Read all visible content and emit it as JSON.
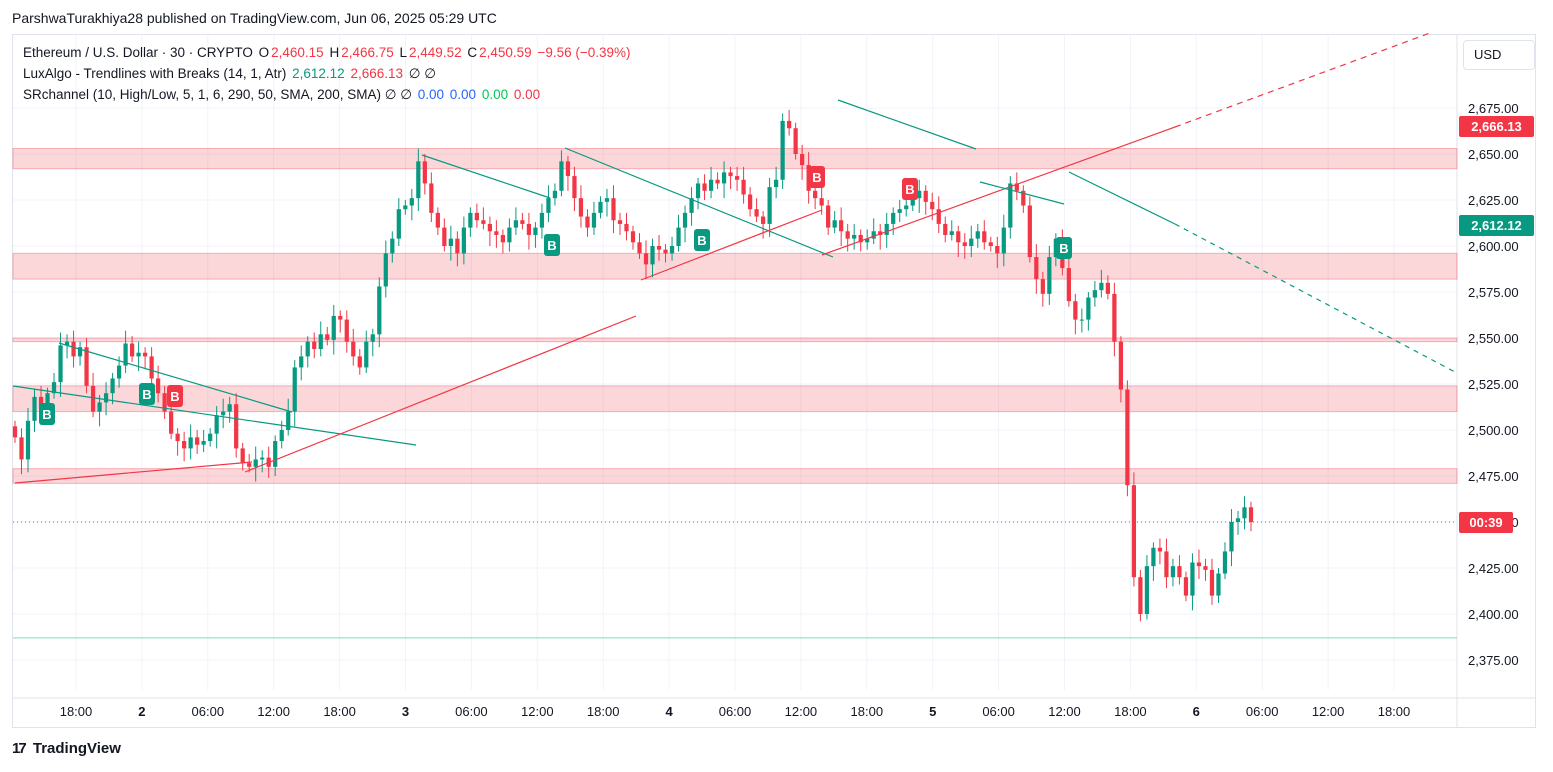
{
  "header": {
    "text": "ParshwaTurakhiya28 published on TradingView.com, Jun 06, 2025 05:29 UTC"
  },
  "legend": {
    "line1": {
      "symbol": "Ethereum / U.S. Dollar · 30 · CRYPTO",
      "o_label": "O",
      "o_val": "2,460.15",
      "h_label": "H",
      "h_val": "2,466.75",
      "l_label": "L",
      "l_val": "2,449.52",
      "c_label": "C",
      "c_val": "2,450.59",
      "change": "−9.56 (−0.39%)"
    },
    "line2": {
      "name": "LuxAlgo - Trendlines with Breaks (14, 1, Atr)",
      "v1": "2,612.12",
      "v2": "2,666.13",
      "v3": "∅ ∅"
    },
    "line3": {
      "name": "SRchannel (10, High/Low, 5, 1, 6, 290, 50, SMA, 200, SMA) ∅ ∅",
      "v1": "0.00",
      "v2": "0.00",
      "v3": "0.00",
      "v4": "0.00"
    }
  },
  "currency": "USD",
  "badges": {
    "resistance": "2,666.13",
    "support": "2,612.12",
    "countdown": "00:39"
  },
  "footer": {
    "brand": "TradingView",
    "logo": "17"
  },
  "colors": {
    "up": "#089981",
    "down": "#f23645",
    "zone": "#f23645",
    "trend_red": "#f23645",
    "trend_teal": "#089981"
  },
  "chart_data": {
    "type": "candlestick",
    "title": "Ethereum / U.S. Dollar · 30 · CRYPTO",
    "ylim": [
      2355,
      2698
    ],
    "y_ticks": [
      "2,675.00",
      "2,650.00",
      "2,625.00",
      "2,600.00",
      "2,575.00",
      "2,550.00",
      "2,525.00",
      "2,500.00",
      "2,475.00",
      "2,450.00",
      "2,425.00",
      "2,400.00",
      "2,375.00"
    ],
    "x_ticks": [
      "18:00",
      "2",
      "06:00",
      "12:00",
      "18:00",
      "3",
      "06:00",
      "12:00",
      "18:00",
      "4",
      "06:00",
      "12:00",
      "18:00",
      "5",
      "06:00",
      "12:00",
      "18:00",
      "6",
      "06:00",
      "12:00",
      "18:00"
    ],
    "bold_x_ticks": [
      "2",
      "3",
      "4",
      "5",
      "6"
    ],
    "candle_closes": [
      2496,
      2484,
      2505,
      2518,
      2512,
      2520,
      2526,
      2546,
      2548,
      2540,
      2545,
      2524,
      2510,
      2515,
      2520,
      2528,
      2535,
      2547,
      2540,
      2542,
      2540,
      2528,
      2520,
      2510,
      2498,
      2494,
      2490,
      2496,
      2492,
      2494,
      2498,
      2508,
      2510,
      2514,
      2490,
      2482,
      2480,
      2484,
      2485,
      2480,
      2494,
      2500,
      2510,
      2534,
      2540,
      2548,
      2544,
      2552,
      2549,
      2562,
      2560,
      2548,
      2540,
      2534,
      2548,
      2552,
      2578,
      2596,
      2604,
      2620,
      2622,
      2626,
      2646,
      2634,
      2618,
      2610,
      2600,
      2604,
      2596,
      2610,
      2618,
      2614,
      2612,
      2608,
      2606,
      2602,
      2610,
      2614,
      2612,
      2606,
      2610,
      2618,
      2626,
      2630,
      2646,
      2638,
      2626,
      2616,
      2610,
      2618,
      2624,
      2626,
      2614,
      2612,
      2608,
      2602,
      2596,
      2590,
      2600,
      2598,
      2596,
      2600,
      2610,
      2618,
      2626,
      2634,
      2630,
      2636,
      2634,
      2640,
      2638,
      2636,
      2628,
      2620,
      2616,
      2612,
      2632,
      2636,
      2668,
      2664,
      2650,
      2644,
      2630,
      2626,
      2622,
      2610,
      2614,
      2608,
      2604,
      2606,
      2602,
      2604,
      2608,
      2606,
      2612,
      2618,
      2620,
      2622,
      2626,
      2630,
      2624,
      2620,
      2612,
      2606,
      2608,
      2602,
      2600,
      2604,
      2608,
      2602,
      2600,
      2596,
      2610,
      2634,
      2630,
      2622,
      2594,
      2582,
      2574,
      2594,
      2604,
      2588,
      2570,
      2560,
      2560,
      2572,
      2576,
      2580,
      2574,
      2548,
      2522,
      2470,
      2420,
      2400,
      2426,
      2436,
      2434,
      2420,
      2426,
      2420,
      2410,
      2428,
      2426,
      2424,
      2410,
      2422,
      2434,
      2450,
      2452,
      2458,
      2450
    ],
    "support_zones": [
      [
        2642,
        2653
      ],
      [
        2582,
        2596
      ],
      [
        2548,
        2550
      ],
      [
        2510,
        2524
      ],
      [
        2471,
        2479
      ]
    ],
    "dotted_price": 2450,
    "green_level": 2387,
    "signals": [
      {
        "label": "B",
        "type": "buy"
      },
      {
        "label": "B",
        "type": "buy"
      },
      {
        "label": "B",
        "type": "sell"
      },
      {
        "label": "B",
        "type": "buy"
      },
      {
        "label": "B",
        "type": "buy"
      },
      {
        "label": "B",
        "type": "sell"
      },
      {
        "label": "B",
        "type": "sell"
      },
      {
        "label": "B",
        "type": "buy"
      }
    ]
  }
}
